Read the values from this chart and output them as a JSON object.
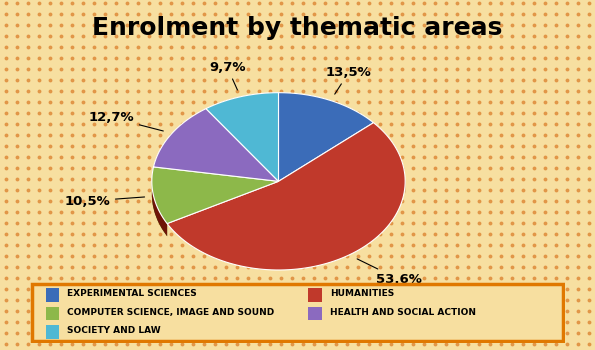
{
  "title": "Enrolment by thematic areas",
  "slices": [
    13.5,
    53.6,
    10.5,
    12.7,
    9.7
  ],
  "labels": [
    "13,5%",
    "53,6%",
    "10,5%",
    "12,7%",
    "9,7%"
  ],
  "legend_labels": [
    "EXPERIMENTAL SCIENCES",
    "HUMANITIES",
    "COMPUTER SCIENCE, IMAGE AND SOUND",
    "HEALTH AND SOCIAL ACTION",
    "SOCIETY AND LAW"
  ],
  "colors": [
    "#3b6cb8",
    "#c0392b",
    "#8db84a",
    "#8b6abf",
    "#4fb8d4"
  ],
  "shadow_colors": [
    "#1a3870",
    "#6e1508",
    "#3d6010",
    "#3d2870",
    "#1a6880"
  ],
  "startangle": 90,
  "dot_color": "#e09040",
  "bg_color": "#f7dfa0",
  "legend_box_color": "#f7dfa0",
  "legend_border_color": "#e07800",
  "title_fontsize": 18,
  "label_fontsize": 9.5
}
